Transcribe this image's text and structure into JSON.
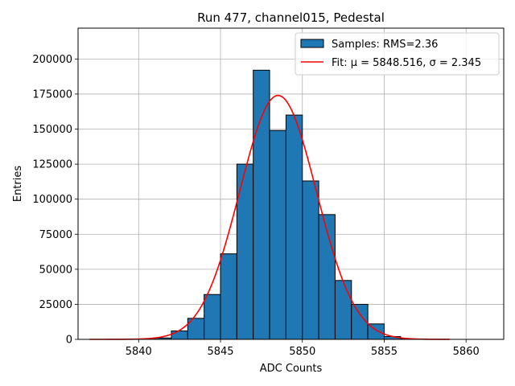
{
  "chart_data": {
    "type": "bar",
    "title": "Run 477, channel015, Pedestal",
    "xlabel": "ADC Counts",
    "ylabel": "Entries",
    "xlim": [
      5836.3,
      5862.3
    ],
    "ylim": [
      0,
      222000
    ],
    "xticks": [
      5840,
      5845,
      5850,
      5855,
      5860
    ],
    "yticks": [
      0,
      25000,
      50000,
      75000,
      100000,
      125000,
      150000,
      175000,
      200000
    ],
    "grid": true,
    "bin_width": 1,
    "histogram": {
      "name": "Samples: RMS=2.36",
      "color": "#1f77b4",
      "edgecolor": "#000000",
      "bin_starts": [
        5840,
        5841,
        5842,
        5843,
        5844,
        5845,
        5846,
        5847,
        5848,
        5849,
        5850,
        5851,
        5852,
        5853,
        5854,
        5855,
        5856
      ],
      "values": [
        200,
        1000,
        6000,
        15000,
        32000,
        61000,
        125000,
        192000,
        149000,
        160000,
        113000,
        89000,
        42000,
        25000,
        11000,
        2000,
        300
      ]
    },
    "fit": {
      "name": "Fit: μ = 5848.516, σ = 2.345",
      "color": "#ff0000",
      "mu": 5848.516,
      "sigma": 2.345,
      "amplitude": 174000,
      "x_range": [
        5837,
        5859
      ]
    },
    "legend": {
      "placement": "top-right",
      "entries": [
        "Samples: RMS=2.36",
        "Fit: μ = 5848.516, σ = 2.345"
      ]
    }
  }
}
